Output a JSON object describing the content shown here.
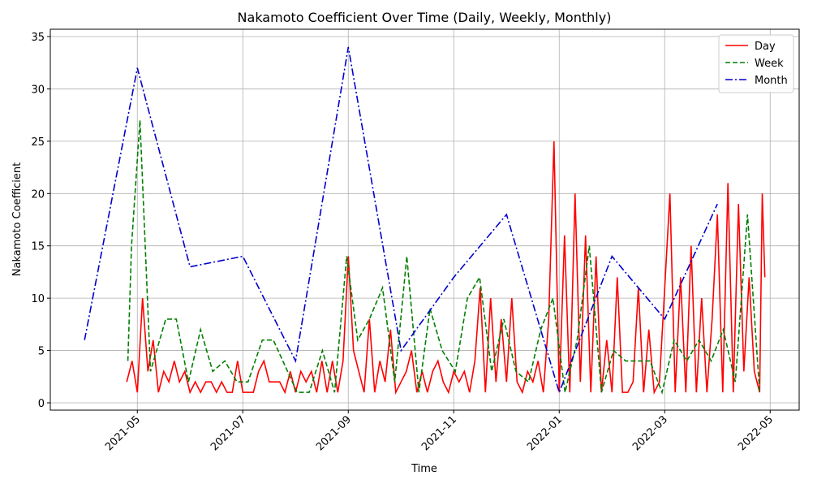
{
  "chart_data": {
    "type": "line",
    "title": "Nakamoto Coefficient Over Time (Daily, Weekly, Monthly)",
    "x_label": "Time",
    "y_label": "Nakamoto Coefficient",
    "xlim": [
      3.35,
      17.55
    ],
    "xticks": [
      {
        "value": 5,
        "label": "2021-05"
      },
      {
        "value": 7,
        "label": "2021-07"
      },
      {
        "value": 9,
        "label": "2021-09"
      },
      {
        "value": 11,
        "label": "2021-11"
      },
      {
        "value": 13,
        "label": "2022-01"
      },
      {
        "value": 15,
        "label": "2022-03"
      },
      {
        "value": 17,
        "label": "2022-05"
      }
    ],
    "ylim": [
      -0.7,
      35.7
    ],
    "yticks": [
      0,
      5,
      10,
      15,
      20,
      25,
      30,
      35
    ],
    "grid": true,
    "legend": "upper right",
    "series": [
      {
        "name": "Day",
        "color": "#ff0000",
        "dash": "solid",
        "x": [
          4.8,
          4.9,
          5.0,
          5.1,
          5.2,
          5.3,
          5.4,
          5.5,
          5.6,
          5.7,
          5.8,
          5.9,
          6.0,
          6.1,
          6.2,
          6.3,
          6.4,
          6.5,
          6.6,
          6.7,
          6.8,
          6.9,
          7.0,
          7.1,
          7.2,
          7.3,
          7.4,
          7.5,
          7.6,
          7.7,
          7.8,
          7.9,
          8.0,
          8.1,
          8.2,
          8.3,
          8.4,
          8.5,
          8.6,
          8.7,
          8.8,
          8.9,
          9.0,
          9.1,
          9.2,
          9.3,
          9.4,
          9.5,
          9.6,
          9.7,
          9.8,
          9.9,
          10.0,
          10.1,
          10.2,
          10.3,
          10.4,
          10.5,
          10.6,
          10.7,
          10.8,
          10.9,
          11.0,
          11.1,
          11.2,
          11.3,
          11.4,
          11.5,
          11.6,
          11.7,
          11.8,
          11.9,
          12.0,
          12.1,
          12.2,
          12.3,
          12.4,
          12.5,
          12.6,
          12.7,
          12.8,
          12.9,
          13.0,
          13.1,
          13.2,
          13.3,
          13.4,
          13.5,
          13.6,
          13.7,
          13.8,
          13.9,
          14.0,
          14.1,
          14.2,
          14.3,
          14.4,
          14.5,
          14.6,
          14.7,
          14.8,
          14.9,
          15.0,
          15.1,
          15.2,
          15.3,
          15.4,
          15.5,
          15.6,
          15.7,
          15.8,
          15.9,
          16.0,
          16.1,
          16.2,
          16.3,
          16.4,
          16.5,
          16.6,
          16.7,
          16.8,
          16.85,
          16.9
        ],
        "values": [
          2,
          4,
          1,
          10,
          3,
          6,
          1,
          3,
          2,
          4,
          2,
          3,
          1,
          2,
          1,
          2,
          2,
          1,
          2,
          1,
          1,
          4,
          1,
          1,
          1,
          3,
          4,
          2,
          2,
          2,
          1,
          3,
          1,
          3,
          2,
          3,
          1,
          4,
          1,
          4,
          1,
          4,
          14,
          5,
          3,
          1,
          8,
          1,
          4,
          2,
          7,
          1,
          2,
          3,
          5,
          1,
          3,
          1,
          3,
          4,
          2,
          1,
          3,
          2,
          3,
          1,
          4,
          11,
          1,
          10,
          2,
          8,
          2,
          10,
          2,
          1,
          3,
          2,
          4,
          1,
          8,
          25,
          1,
          16,
          1,
          20,
          2,
          16,
          1,
          14,
          1,
          6,
          1,
          12,
          1,
          1,
          2,
          11,
          1,
          7,
          1,
          2,
          11,
          20,
          1,
          12,
          1,
          15,
          1,
          10,
          1,
          8,
          18,
          1,
          21,
          1,
          19,
          3,
          12,
          3,
          1,
          20,
          12
        ]
      },
      {
        "name": "Week",
        "color": "#008000",
        "dash": "dashed",
        "x": [
          4.82,
          4.89,
          5.05,
          5.25,
          5.54,
          5.74,
          5.97,
          6.2,
          6.43,
          6.66,
          6.89,
          7.1,
          7.37,
          7.58,
          8.03,
          8.26,
          8.51,
          8.74,
          8.97,
          9.18,
          9.4,
          9.65,
          9.88,
          10.11,
          10.34,
          10.55,
          10.78,
          11.03,
          11.26,
          11.49,
          11.72,
          11.95,
          12.18,
          12.42,
          12.65,
          12.88,
          13.11,
          13.34,
          13.57,
          13.8,
          14.03,
          14.26,
          14.49,
          14.72,
          14.95,
          15.18,
          15.42,
          15.65,
          15.88,
          16.11,
          16.34,
          16.57,
          16.8
        ],
        "values": [
          4,
          15,
          27,
          3,
          8,
          8,
          2,
          7,
          3,
          4,
          2,
          2,
          6,
          6,
          1,
          1,
          5,
          1,
          14,
          6,
          8,
          11,
          2,
          14,
          1,
          9,
          5,
          3,
          10,
          12,
          3,
          8,
          3,
          2,
          7,
          10,
          1,
          6,
          15,
          1,
          5,
          4,
          4,
          4,
          1,
          6,
          4,
          6,
          4,
          7,
          2,
          18,
          1
        ]
      },
      {
        "name": "Month",
        "color": "#0000cc",
        "dash": "dashdot",
        "x": [
          4,
          5,
          6,
          7,
          8,
          9,
          10,
          11,
          12,
          13,
          14,
          15,
          16
        ],
        "values": [
          6,
          32,
          13,
          14,
          4,
          34,
          5,
          12,
          18,
          1,
          14,
          8,
          19
        ]
      }
    ]
  }
}
